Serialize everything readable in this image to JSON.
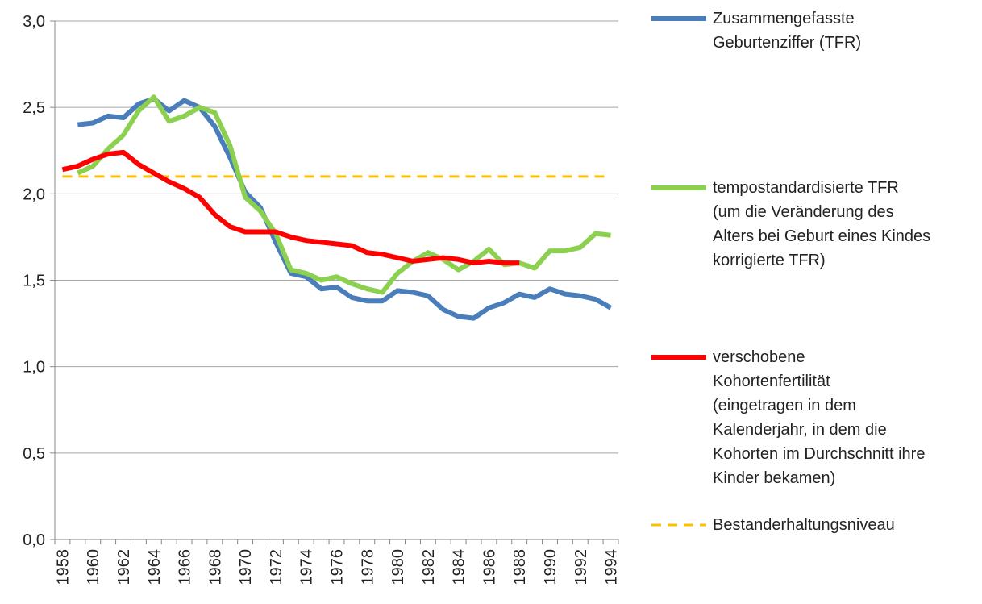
{
  "chart_data": {
    "type": "line",
    "categories": [
      "1958",
      null,
      "1960",
      null,
      "1962",
      null,
      "1964",
      null,
      "1966",
      null,
      "1968",
      null,
      "1970",
      null,
      "1972",
      null,
      "1974",
      null,
      "1976",
      null,
      "1978",
      null,
      "1980",
      null,
      "1982",
      null,
      "1984",
      null,
      "1986",
      null,
      "1988",
      null,
      "1990",
      null,
      "1992",
      null,
      "1994"
    ],
    "series": [
      {
        "name": "Zusammengefasste\nGeburtenziffer (TFR)",
        "color": "#4a7ebb",
        "values": [
          null,
          2.4,
          2.41,
          2.45,
          2.44,
          2.52,
          2.55,
          2.48,
          2.54,
          2.5,
          2.39,
          2.21,
          2.01,
          1.92,
          1.72,
          1.54,
          1.52,
          1.45,
          1.46,
          1.4,
          1.38,
          1.38,
          1.44,
          1.43,
          1.41,
          1.33,
          1.29,
          1.28,
          1.34,
          1.37,
          1.42,
          1.4,
          1.45,
          1.42,
          1.41,
          1.39,
          1.34
        ]
      },
      {
        "name": "tempostandardisierte TFR\n(um die Veränderung des\nAlters bei Geburt eines Kindes\nkorrigierte TFR)",
        "color": "#8cd04f",
        "values": [
          null,
          2.12,
          2.16,
          2.26,
          2.34,
          2.48,
          2.56,
          2.42,
          2.45,
          2.5,
          2.47,
          2.28,
          1.98,
          1.9,
          1.77,
          1.56,
          1.54,
          1.5,
          1.52,
          1.48,
          1.45,
          1.43,
          1.54,
          1.61,
          1.66,
          1.62,
          1.56,
          1.61,
          1.68,
          1.59,
          1.6,
          1.57,
          1.67,
          1.67,
          1.69,
          1.77,
          1.76
        ]
      },
      {
        "name": "verschobene\nKohortenfertilität\n(eingetragen in dem\nKalenderjahr, in dem die\nKohorten im Durchschnitt ihre\nKinder bekamen)",
        "color": "#ff0000",
        "values": [
          2.14,
          2.16,
          2.2,
          2.23,
          2.24,
          2.17,
          2.12,
          2.07,
          2.03,
          1.98,
          1.88,
          1.81,
          1.78,
          1.78,
          1.78,
          1.75,
          1.73,
          1.72,
          1.71,
          1.7,
          1.66,
          1.65,
          1.63,
          1.61,
          1.62,
          1.63,
          1.62,
          1.6,
          1.61,
          1.6,
          1.6,
          null,
          null,
          null,
          null,
          null,
          null
        ]
      },
      {
        "name": "Bestanderhaltungsniveau",
        "color": "#ffc000",
        "dashed": true,
        "values": [
          2.1,
          2.1,
          2.1,
          2.1,
          2.1,
          2.1,
          2.1,
          2.1,
          2.1,
          2.1,
          2.1,
          2.1,
          2.1,
          2.1,
          2.1,
          2.1,
          2.1,
          2.1,
          2.1,
          2.1,
          2.1,
          2.1,
          2.1,
          2.1,
          2.1,
          2.1,
          2.1,
          2.1,
          2.1,
          2.1,
          2.1,
          2.1,
          2.1,
          2.1,
          2.1,
          2.1,
          2.1
        ]
      }
    ],
    "ylim": [
      0,
      3
    ],
    "yticks": [
      {
        "value": 0,
        "label": "0,0"
      },
      {
        "value": 0.5,
        "label": "0,5"
      },
      {
        "value": 1,
        "label": "1,0"
      },
      {
        "value": 1.5,
        "label": "1,5"
      },
      {
        "value": 2,
        "label": "2,0"
      },
      {
        "value": 2.5,
        "label": "2,5"
      },
      {
        "value": 3,
        "label": "3,0"
      }
    ],
    "grid": true,
    "legend": "right"
  }
}
